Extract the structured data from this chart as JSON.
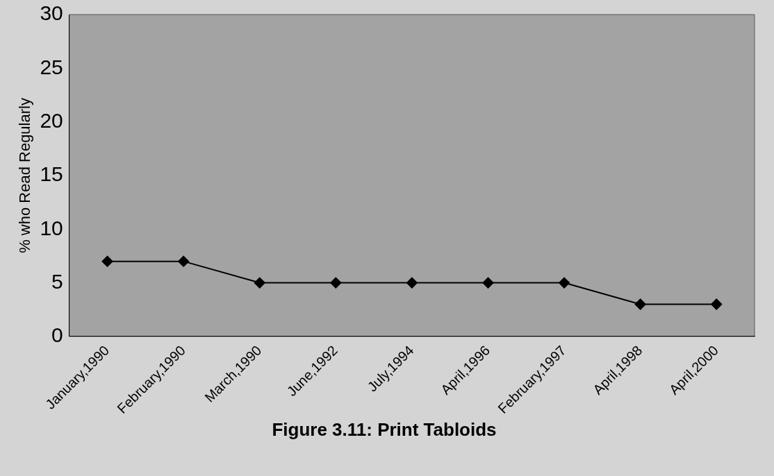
{
  "chart_data": {
    "type": "line",
    "title": "Figure 3.11: Print Tabloids",
    "ylabel": "% who Read Regularly",
    "categories": [
      "January,1990",
      "February,1990",
      "March,1990",
      "June,1992",
      "July,1994",
      "April,1996",
      "February,1997",
      "April,1998",
      "April,2000"
    ],
    "series": [
      {
        "color": "#000000",
        "values": [
          7,
          7,
          5,
          5,
          5,
          5,
          5,
          3,
          3
        ]
      }
    ],
    "ylim": [
      0,
      30
    ],
    "yticks": [
      0,
      5,
      10,
      15,
      20,
      25,
      30
    ],
    "grid": false,
    "legend": false,
    "marker": "diamond",
    "line_style": "solid"
  }
}
